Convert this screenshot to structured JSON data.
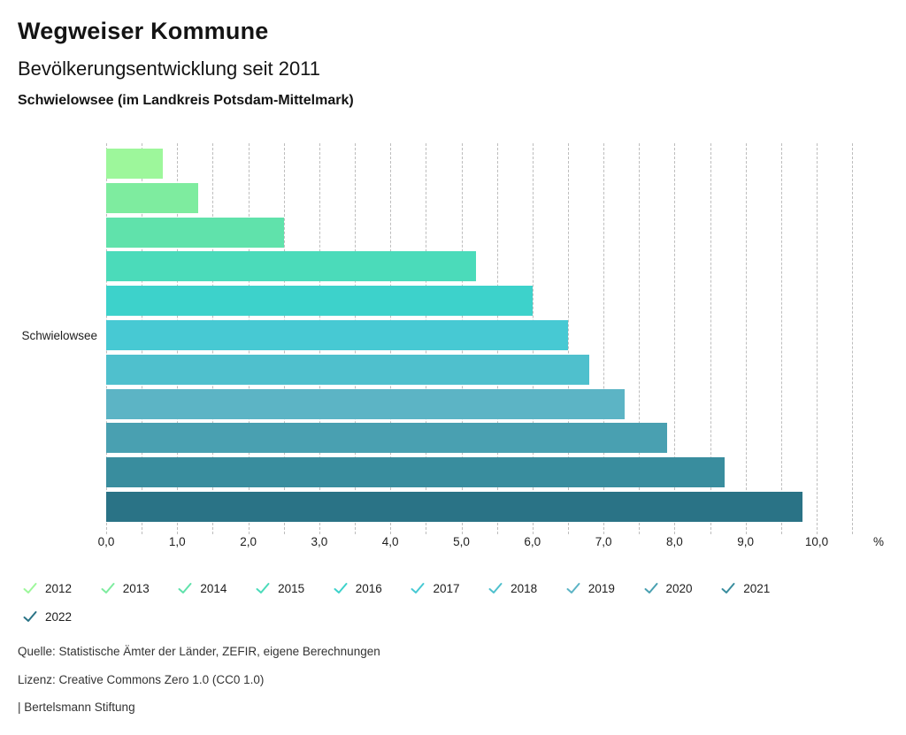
{
  "header": {
    "title": "Wegweiser Kommune",
    "subtitle": "Bevölkerungsentwicklung seit 2011",
    "region": "Schwielowsee (im Landkreis Potsdam-Mittelmark)"
  },
  "chart_data": {
    "type": "bar",
    "orientation": "horizontal",
    "title": "Bevölkerungsentwicklung seit 2011",
    "group_label": "Schwielowsee",
    "categories": [
      "2012",
      "2013",
      "2014",
      "2015",
      "2016",
      "2017",
      "2018",
      "2019",
      "2020",
      "2021",
      "2022"
    ],
    "values": [
      0.8,
      1.3,
      2.5,
      5.2,
      6.0,
      6.5,
      6.8,
      7.3,
      7.9,
      8.7,
      9.8
    ],
    "colors": [
      "#9DF79B",
      "#7EEC9F",
      "#60E2AB",
      "#4BDBBA",
      "#3DD2CB",
      "#47C9D3",
      "#4FC0CD",
      "#5CB4C5",
      "#49A0B1",
      "#398D9E",
      "#2A7386"
    ],
    "xlabel": "",
    "ylabel": "Schwielowsee",
    "unit_label": "%",
    "xlim": [
      0,
      10.5
    ],
    "x_ticks": [
      "0,0",
      "1,0",
      "2,0",
      "3,0",
      "4,0",
      "5,0",
      "6,0",
      "7,0",
      "8,0",
      "9,0",
      "10,0"
    ],
    "x_tick_values": [
      0,
      1,
      2,
      3,
      4,
      5,
      6,
      7,
      8,
      9,
      10
    ],
    "grid": {
      "style": "dashed",
      "interval": 0.5,
      "color": "#bdbdbd"
    },
    "legend_position": "bottom",
    "legend_rows": [
      10,
      1
    ]
  },
  "footer": {
    "source": "Quelle: Statistische Ämter der Länder, ZEFIR, eigene Berechnungen",
    "license": "Lizenz: Creative Commons Zero 1.0 (CC0 1.0)",
    "attribution": "| Bertelsmann Stiftung"
  }
}
